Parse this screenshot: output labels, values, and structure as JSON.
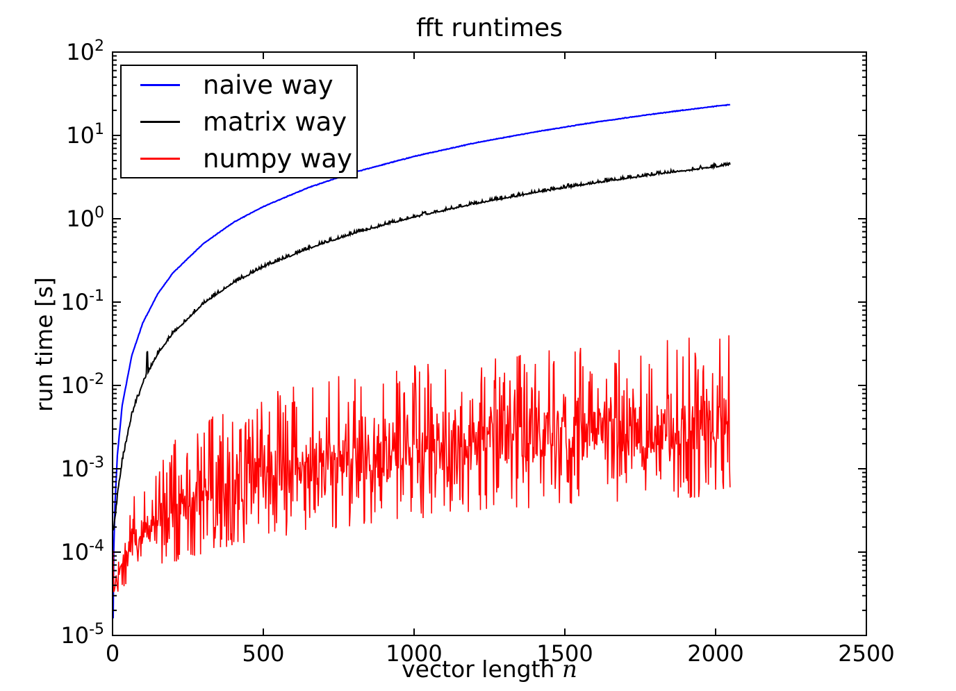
{
  "chart_data": {
    "type": "line",
    "title": "fft runtimes",
    "xlabel": "vector length",
    "xlabel_math": "n",
    "ylabel": "run time [s]",
    "grid": false,
    "legend": {
      "position": "upper left"
    },
    "x_axis": {
      "min": 0,
      "max": 2500,
      "ticks": [
        0,
        500,
        1000,
        1500,
        2000,
        2500
      ]
    },
    "y_axis": {
      "scale": "log",
      "min": 1e-05,
      "max": 100,
      "tick_exponents": [
        2,
        1,
        0,
        -1,
        -2,
        -3,
        -4,
        -5
      ]
    },
    "series": [
      {
        "name": "naive way",
        "color": "#0000ff",
        "width": 2.2,
        "style": "noisy",
        "seed": 11,
        "n_start": 2,
        "n_end": 2048,
        "n_step": 2,
        "noise": {
          "base": 0.006,
          "small_n": 0,
          "small_mult": 1,
          "spike_p": 0,
          "spike_amp": 0,
          "spikes": []
        },
        "points": [
          [
            2,
            1.6e-05
          ],
          [
            4,
            0.0001
          ],
          [
            8,
            0.00037
          ],
          [
            16,
            0.00145
          ],
          [
            32,
            0.0058
          ],
          [
            64,
            0.023
          ],
          [
            100,
            0.056
          ],
          [
            150,
            0.126
          ],
          [
            200,
            0.224
          ],
          [
            300,
            0.5
          ],
          [
            400,
            0.9
          ],
          [
            500,
            1.4
          ],
          [
            650,
            2.37
          ],
          [
            800,
            3.6
          ],
          [
            1000,
            5.6
          ],
          [
            1200,
            8.1
          ],
          [
            1400,
            11.0
          ],
          [
            1600,
            14.4
          ],
          [
            1800,
            18.2
          ],
          [
            2000,
            22.4
          ],
          [
            2048,
            23.5
          ]
        ]
      },
      {
        "name": "matrix way",
        "color": "#000000",
        "width": 2.0,
        "style": "noisy",
        "seed": 23,
        "n_start": 2,
        "n_end": 2048,
        "n_step": 2,
        "noise": {
          "base": 0.011,
          "small_n": 90,
          "small_mult": 3.5,
          "spike_p": 0.22,
          "spike_amp": 0.035,
          "spikes": [
            [
              115,
              0.27
            ]
          ]
        },
        "points": [
          [
            2,
            0.00019
          ],
          [
            4,
            0.000195
          ],
          [
            8,
            0.00025
          ],
          [
            16,
            0.00046
          ],
          [
            32,
            0.00125
          ],
          [
            64,
            0.0045
          ],
          [
            100,
            0.0107
          ],
          [
            150,
            0.024
          ],
          [
            200,
            0.042
          ],
          [
            300,
            0.095
          ],
          [
            400,
            0.17
          ],
          [
            500,
            0.263
          ],
          [
            650,
            0.44
          ],
          [
            800,
            0.67
          ],
          [
            1000,
            1.05
          ],
          [
            1200,
            1.51
          ],
          [
            1400,
            2.06
          ],
          [
            1600,
            2.69
          ],
          [
            1800,
            3.4
          ],
          [
            2000,
            4.2
          ],
          [
            2048,
            4.45
          ]
        ]
      },
      {
        "name": "numpy way",
        "color": "#ff0000",
        "width": 1.6,
        "style": "band",
        "seed": 37,
        "n_start": 2,
        "n_end": 2048,
        "n_step": 2,
        "envelope": [
          [
            2,
            3e-05,
            0.00026
          ],
          [
            4,
            2.9e-05,
            3.8e-05
          ],
          [
            8,
            3e-05,
            4.6e-05
          ],
          [
            16,
            3.2e-05,
            7e-05
          ],
          [
            30,
            3.6e-05,
            0.00016
          ],
          [
            50,
            4.1e-05,
            0.00032
          ],
          [
            80,
            4.8e-05,
            0.00065
          ],
          [
            120,
            5.6e-05,
            0.0011
          ],
          [
            200,
            7.4e-05,
            0.0023
          ],
          [
            300,
            9.6e-05,
            0.0042
          ],
          [
            450,
            0.00013,
            0.0072
          ],
          [
            650,
            0.000175,
            0.0115
          ],
          [
            900,
            0.00023,
            0.0165
          ],
          [
            1200,
            0.00029,
            0.022
          ],
          [
            1500,
            0.00036,
            0.028
          ],
          [
            1800,
            0.00042,
            0.035
          ],
          [
            2048,
            0.00048,
            0.042
          ]
        ]
      }
    ]
  }
}
